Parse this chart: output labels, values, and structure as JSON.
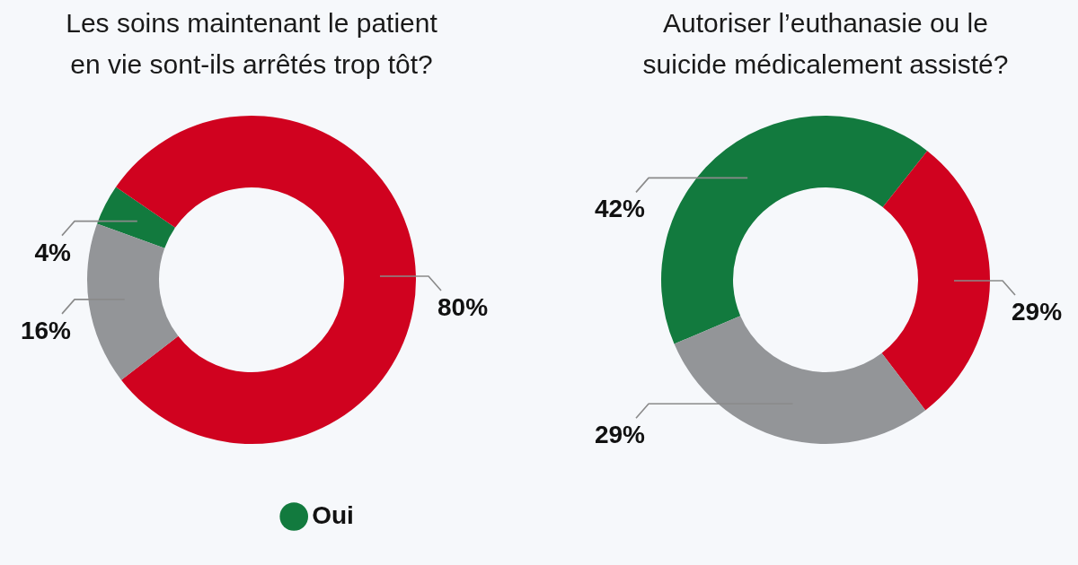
{
  "chart_data": [
    {
      "type": "donut",
      "title": "Les soins maintenant le patient\nen vie sont-ils arrêtés trop tôt?",
      "categories": [
        "Oui",
        null,
        null
      ],
      "values": [
        4,
        80,
        16
      ],
      "colors": [
        "#127a3e",
        "#d0021f",
        "#939598"
      ],
      "value_labels": [
        "4%",
        "80%",
        "16%"
      ],
      "legend": "bottom"
    },
    {
      "type": "donut",
      "title": "Autoriser l’euthanasie ou le\nsuicide médicalement assisté?",
      "categories": [
        null,
        null,
        null
      ],
      "values": [
        42,
        29,
        29
      ],
      "colors": [
        "#127a3e",
        "#d0021f",
        "#939598"
      ],
      "value_labels": [
        "42%",
        "29%",
        "29%"
      ]
    }
  ]
}
